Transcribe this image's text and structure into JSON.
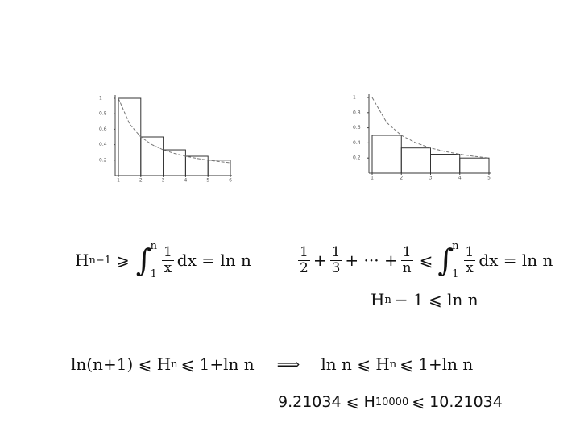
{
  "chart_data": [
    {
      "type": "step",
      "xlim": [
        1,
        6
      ],
      "ylim": [
        0,
        1
      ],
      "xticks": [
        1,
        2,
        3,
        4,
        5,
        6
      ],
      "yticks": [
        0.2,
        0.4,
        0.6,
        0.8,
        1
      ],
      "series": [
        {
          "color": "#333333",
          "bins": [
            1,
            2,
            3,
            4,
            5,
            6
          ],
          "values": [
            1,
            0.5,
            0.333,
            0.25,
            0.2
          ]
        },
        {
          "color": "#777777",
          "dashed": true,
          "x": [
            1,
            1.5,
            2,
            2.5,
            3,
            3.5,
            4,
            4.5,
            5,
            5.5,
            6
          ],
          "values": [
            1,
            0.667,
            0.5,
            0.4,
            0.333,
            0.286,
            0.25,
            0.222,
            0.2,
            0.182,
            0.167
          ]
        }
      ]
    },
    {
      "type": "step",
      "xlim": [
        1,
        5
      ],
      "ylim": [
        0,
        1
      ],
      "xticks": [
        1,
        2,
        3,
        4,
        5
      ],
      "yticks": [
        0.2,
        0.4,
        0.6,
        0.8,
        1
      ],
      "series": [
        {
          "color": "#333333",
          "bins": [
            1,
            2,
            3,
            4,
            5
          ],
          "values": [
            0.5,
            0.333,
            0.25,
            0.2
          ]
        },
        {
          "color": "#777777",
          "dashed": true,
          "x": [
            1,
            1.5,
            2,
            2.5,
            3,
            3.5,
            4,
            4.5,
            5
          ],
          "values": [
            1,
            0.667,
            0.5,
            0.4,
            0.333,
            0.286,
            0.25,
            0.222,
            0.2
          ]
        }
      ]
    }
  ],
  "formulas": [
    [
      "H",
      "n−1",
      "⩾",
      "∫",
      "n",
      "1",
      "1",
      "x",
      "dx = ln n"
    ],
    [
      "1",
      "2",
      "+",
      "1",
      "3",
      "+ ··· +",
      "1",
      "n",
      "⩽",
      "∫",
      "n",
      "1",
      "1",
      "x",
      "dx = ln n"
    ],
    [
      "H",
      "n",
      "− 1 ⩽ ln n"
    ],
    [
      "ln(n+1) ⩽ H",
      "n",
      "⩽ 1+ln n",
      "⟹",
      "ln n ⩽ H",
      "n",
      "⩽ 1+ln n"
    ],
    [
      "9.21034 ⩽ H",
      "10000",
      "⩽ 10.21034"
    ]
  ]
}
